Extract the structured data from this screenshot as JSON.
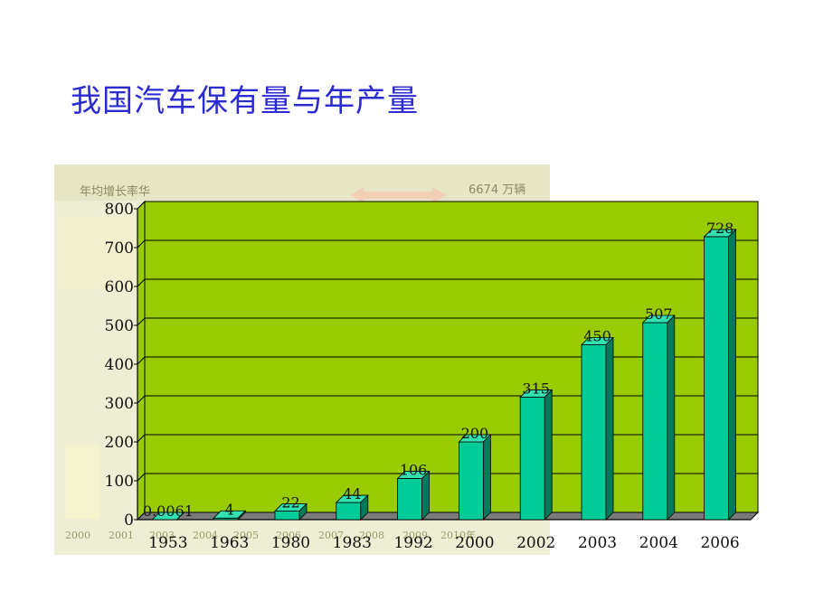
{
  "slide": {
    "title": "我国汽车保有量与年产量"
  },
  "background_image": {
    "top_left_text": "年均增长率华",
    "top_right_text": "6674 万辆",
    "year_labels": [
      "2000",
      "2001",
      "2003",
      "2004",
      "2005",
      "2006",
      "2007",
      "2008",
      "2009",
      "2010年"
    ]
  },
  "chart_data": {
    "type": "bar",
    "title": "",
    "xlabel": "",
    "ylabel": "",
    "categories": [
      "1953",
      "1963",
      "1980",
      "1983",
      "1992",
      "2000",
      "2002",
      "2003",
      "2004",
      "2006"
    ],
    "values": [
      0.0061,
      4,
      22,
      44,
      106,
      200,
      315,
      450,
      507,
      728
    ],
    "value_labels": [
      "0.0061",
      "4",
      "22",
      "44",
      "106",
      "200",
      "315",
      "450",
      "507",
      "728"
    ],
    "ylim": [
      0,
      800
    ],
    "yticks": [
      0,
      100,
      200,
      300,
      400,
      500,
      600,
      700,
      800
    ],
    "grid": true,
    "legend": "none",
    "colors": {
      "plot_background": "#99cc00",
      "bar_front": "#00cc99",
      "bar_top": "#33e0b0",
      "bar_side": "#007a5a",
      "gridline": "#000000"
    }
  }
}
